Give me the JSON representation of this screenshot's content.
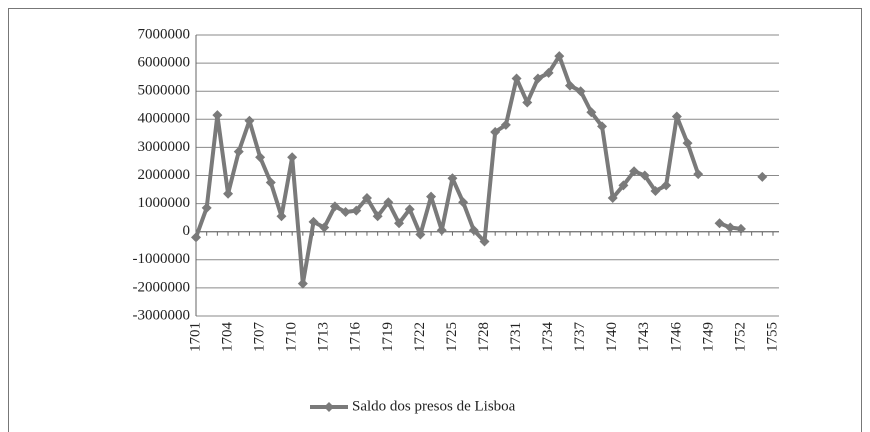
{
  "chart_data": {
    "type": "line",
    "categories": [
      "1701",
      null,
      null,
      "1704",
      null,
      null,
      "1707",
      null,
      null,
      "1710",
      null,
      null,
      "1713",
      null,
      null,
      "1716",
      null,
      null,
      "1719",
      null,
      null,
      "1722",
      null,
      null,
      "1725",
      null,
      null,
      "1728",
      null,
      null,
      "1731",
      null,
      null,
      "1734",
      null,
      null,
      "1737",
      null,
      null,
      "1740",
      null,
      null,
      "1743",
      null,
      null,
      "1746",
      null,
      null,
      "1749",
      null,
      null,
      "1752",
      null,
      null,
      "1755"
    ],
    "series": [
      {
        "name": "Saldo dos presos de Lisboa",
        "color": "#7a7a7a",
        "values": [
          -200000,
          850000,
          4150000,
          1350000,
          2850000,
          3950000,
          2650000,
          1750000,
          550000,
          2650000,
          -1850000,
          350000,
          150000,
          900000,
          700000,
          750000,
          1200000,
          550000,
          1050000,
          300000,
          800000,
          -100000,
          1250000,
          50000,
          1900000,
          1050000,
          50000,
          -350000,
          3550000,
          3800000,
          5450000,
          4600000,
          5450000,
          5650000,
          6250000,
          5200000,
          5000000,
          4250000,
          3750000,
          1200000,
          1650000,
          2150000,
          2000000,
          1450000,
          1650000,
          4100000,
          3150000,
          2050000,
          null,
          300000,
          150000,
          100000,
          null,
          1950000,
          null
        ]
      }
    ],
    "ylim": [
      -3000000,
      7000000
    ],
    "yticks": [
      -3000000,
      -2000000,
      -1000000,
      0,
      1000000,
      2000000,
      3000000,
      4000000,
      5000000,
      6000000,
      7000000
    ],
    "grid": true,
    "legend": "bottom"
  }
}
